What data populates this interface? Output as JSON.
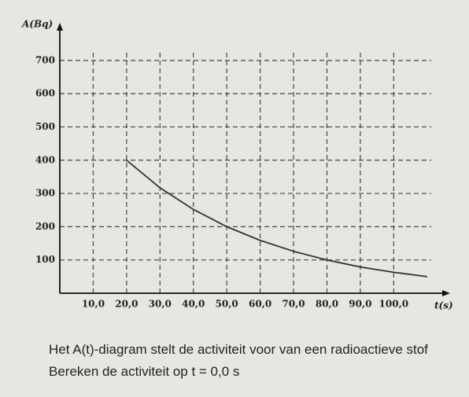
{
  "chart_data": {
    "type": "line",
    "x_label": "t(s)",
    "y_label": "A(Bq)",
    "x": [
      20,
      30,
      40,
      50,
      60,
      70,
      80,
      90,
      100,
      110
    ],
    "values": [
      400,
      317,
      252,
      200,
      159,
      126,
      100,
      79,
      63,
      50
    ],
    "color": "#333333",
    "xlim": [
      0,
      115
    ],
    "ylim": [
      0,
      780
    ],
    "xticks": [
      {
        "value": 10,
        "label": "10,0"
      },
      {
        "value": 20,
        "label": "20,0"
      },
      {
        "value": 30,
        "label": "30,0"
      },
      {
        "value": 40,
        "label": "40,0"
      },
      {
        "value": 50,
        "label": "50,0"
      },
      {
        "value": 60,
        "label": "60,0"
      },
      {
        "value": 70,
        "label": "70,0"
      },
      {
        "value": 80,
        "label": "80,0"
      },
      {
        "value": 90,
        "label": "90,0"
      },
      {
        "value": 100,
        "label": "100,0"
      }
    ],
    "yticks": [
      100,
      200,
      300,
      400,
      500,
      600,
      700
    ],
    "grid": true
  },
  "caption": [
    "Het A(t)-diagram stelt de activiteit voor van een radioactieve stof",
    "Bereken de activiteit op t = 0,0 s"
  ]
}
